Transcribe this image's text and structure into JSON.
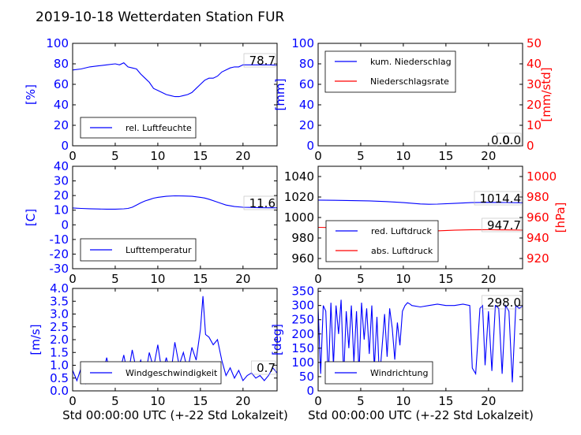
{
  "title": "2019-10-18 Wetterdaten Station FUR",
  "xlabel": "Std 00:00:00 UTC (+-22 Std Lokalzeit)",
  "colors": {
    "blue": "#0000ff",
    "red": "#ff0000"
  },
  "chart_data": [
    {
      "id": "humidity",
      "type": "line",
      "ylabel": "[%]",
      "ylim": [
        0,
        100
      ],
      "yticks": [
        0,
        20,
        40,
        60,
        80,
        100
      ],
      "xlim": [
        0,
        24
      ],
      "xticks": [
        0,
        5,
        10,
        15,
        20
      ],
      "last_value": "78.7",
      "legend": {
        "placement": "lower-left",
        "entries": [
          "rel. Luftfeuchte"
        ]
      },
      "series": [
        {
          "name": "rel. Luftfeuchte",
          "color": "#0000ff",
          "x": [
            0,
            1,
            2,
            3,
            4,
            5,
            5.5,
            6,
            6.5,
            7,
            7.5,
            8,
            8.5,
            9,
            9.5,
            10,
            10.5,
            11,
            11.5,
            12,
            12.5,
            13,
            13.5,
            14,
            14.5,
            15,
            15.5,
            16,
            16.5,
            17,
            17.5,
            18,
            18.5,
            19,
            19.5,
            20,
            21,
            22,
            23,
            24
          ],
          "y": [
            74,
            75,
            77,
            78,
            79,
            80,
            79,
            81,
            77,
            76,
            75,
            70,
            66,
            62,
            56,
            54,
            52,
            50,
            49,
            48,
            48,
            49,
            50,
            52,
            56,
            60,
            64,
            66,
            66,
            68,
            72,
            74,
            76,
            77,
            77,
            79,
            79,
            79,
            79,
            78.7
          ]
        }
      ]
    },
    {
      "id": "precip",
      "type": "line",
      "ylabel": "[mm]",
      "ylabel_right": "[mm/std]",
      "ylim": [
        0,
        100
      ],
      "yticks": [
        0,
        20,
        40,
        60,
        80,
        100
      ],
      "ylim_right": [
        0,
        50
      ],
      "yticks_right": [
        0,
        10,
        20,
        30,
        40,
        50
      ],
      "xlim": [
        0,
        24
      ],
      "xticks": [
        0,
        5,
        10,
        15,
        20
      ],
      "last_value": "0.0",
      "last_value_2": "0.0",
      "legend": {
        "placement": "upper-left",
        "entries": [
          "kum. Niederschlag",
          "Niederschlagsrate"
        ]
      },
      "series": [
        {
          "name": "kum. Niederschlag",
          "color": "#0000ff",
          "x": [
            0,
            24
          ],
          "y": [
            0,
            0
          ]
        },
        {
          "name": "Niederschlagsrate",
          "color": "#ff0000",
          "x": [
            0,
            24
          ],
          "y": [
            0,
            0
          ]
        }
      ]
    },
    {
      "id": "temperature",
      "type": "line",
      "ylabel": "[C]",
      "ylim": [
        -30,
        40
      ],
      "yticks": [
        -30,
        -20,
        -10,
        0,
        10,
        20,
        30,
        40
      ],
      "xlim": [
        0,
        24
      ],
      "xticks": [
        0,
        5,
        10,
        15,
        20
      ],
      "last_value": "11.6",
      "legend": {
        "placement": "lower-left",
        "entries": [
          "Lufttemperatur"
        ]
      },
      "series": [
        {
          "name": "Lufttemperatur",
          "color": "#0000ff",
          "x": [
            0,
            1,
            2,
            3,
            4,
            5,
            6,
            6.5,
            7,
            7.5,
            8,
            8.5,
            9,
            9.5,
            10,
            11,
            12,
            13,
            14,
            15,
            15.5,
            16,
            17,
            17.5,
            18,
            19,
            20,
            21,
            22,
            23,
            24
          ],
          "y": [
            11.5,
            11.2,
            11.0,
            10.8,
            10.7,
            10.7,
            10.9,
            11.2,
            12.0,
            13.5,
            15.0,
            16.3,
            17.2,
            18.2,
            18.8,
            19.5,
            19.8,
            19.7,
            19.5,
            18.8,
            18.3,
            17.5,
            15.5,
            14.5,
            13.5,
            12.5,
            12.0,
            11.9,
            11.7,
            11.6,
            11.6
          ]
        }
      ]
    },
    {
      "id": "pressure",
      "type": "line",
      "ylabel_right": "[hPa]",
      "ylim": [
        950,
        1050
      ],
      "yticks": [
        960,
        980,
        1000,
        1020,
        1040
      ],
      "ylim_right": [
        910,
        1010
      ],
      "yticks_right": [
        920,
        940,
        960,
        980,
        1000
      ],
      "xlim": [
        0,
        24
      ],
      "xticks": [
        0,
        5,
        10,
        15,
        20
      ],
      "last_value": "1014.4",
      "last_value_2": "947.7",
      "legend": {
        "placement": "lower-left",
        "entries": [
          "red. Luftdruck",
          "abs. Luftdruck"
        ]
      },
      "series": [
        {
          "name": "red. Luftdruck",
          "color": "#0000ff",
          "axis": "left",
          "x": [
            0,
            2,
            4,
            6,
            8,
            10,
            12,
            13,
            14,
            16,
            18,
            20,
            22,
            24
          ],
          "y": [
            1017,
            1016.8,
            1016.5,
            1016.2,
            1015.5,
            1014.5,
            1013.2,
            1012.9,
            1013.1,
            1013.8,
            1014.5,
            1014.8,
            1014.6,
            1014.4
          ]
        },
        {
          "name": "abs. Luftdruck",
          "color": "#ff0000",
          "axis": "right",
          "x": [
            0,
            2,
            4,
            6,
            8,
            10,
            12,
            13,
            14,
            16,
            18,
            20,
            22,
            24
          ],
          "y": [
            950.4,
            950.1,
            949.8,
            949.5,
            948.8,
            948.0,
            947.0,
            946.8,
            947.0,
            947.6,
            948.0,
            948.1,
            947.9,
            947.7
          ]
        }
      ]
    },
    {
      "id": "wind-speed",
      "type": "line",
      "ylabel": "[m/s]",
      "ylim": [
        0,
        4
      ],
      "yticks": [
        0.0,
        0.5,
        1.0,
        1.5,
        2.0,
        2.5,
        3.0,
        3.5,
        4.0
      ],
      "xlim": [
        0,
        24
      ],
      "xticks": [
        0,
        5,
        10,
        15,
        20
      ],
      "last_value": "0.7",
      "legend": {
        "placement": "lower-left",
        "entries": [
          "Windgeschwindigkeit"
        ]
      },
      "series": [
        {
          "name": "Windgeschwindigkeit",
          "color": "#0000ff",
          "x": [
            0,
            0.5,
            1,
            1.5,
            2,
            2.5,
            3,
            3.5,
            4,
            4.5,
            5,
            5.5,
            6,
            6.5,
            7,
            7.5,
            8,
            8.5,
            9,
            9.5,
            10,
            10.5,
            11,
            11.5,
            12,
            12.5,
            13,
            13.5,
            14,
            14.5,
            15,
            15.3,
            15.6,
            16,
            16.5,
            17,
            17.5,
            18,
            18.5,
            19,
            19.5,
            20,
            20.5,
            21,
            21.5,
            22,
            22.5,
            23,
            23.5,
            24
          ],
          "y": [
            0.8,
            0.4,
            0.9,
            0.3,
            0.7,
            0.5,
            1.1,
            0.6,
            1.3,
            0.5,
            0.9,
            0.7,
            1.4,
            0.6,
            1.6,
            0.8,
            1.2,
            0.5,
            1.5,
            0.9,
            1.8,
            0.7,
            1.3,
            0.6,
            1.9,
            1.0,
            1.5,
            0.8,
            1.7,
            1.2,
            2.4,
            3.7,
            2.2,
            2.1,
            1.8,
            2.0,
            1.2,
            0.6,
            0.9,
            0.5,
            0.8,
            0.4,
            0.6,
            0.7,
            0.5,
            0.6,
            0.4,
            0.6,
            0.9,
            0.7
          ]
        }
      ]
    },
    {
      "id": "wind-direction",
      "type": "line",
      "ylabel": "[deg]",
      "ylim": [
        0,
        360
      ],
      "yticks": [
        0,
        50,
        100,
        150,
        200,
        250,
        300,
        350
      ],
      "xlim": [
        0,
        24
      ],
      "xticks": [
        0,
        5,
        10,
        15,
        20
      ],
      "last_value": "298.0",
      "legend": {
        "placement": "lower-left",
        "entries": [
          "Windrichtung"
        ]
      },
      "series": [
        {
          "name": "Windrichtung",
          "color": "#0000ff",
          "x": [
            0,
            0.3,
            0.6,
            0.9,
            1.2,
            1.5,
            1.8,
            2.1,
            2.4,
            2.7,
            3,
            3.3,
            3.6,
            3.9,
            4.2,
            4.5,
            4.8,
            5.1,
            5.4,
            5.7,
            6,
            6.3,
            6.6,
            6.9,
            7.2,
            7.5,
            7.8,
            8.1,
            8.4,
            8.7,
            9,
            9.3,
            9.6,
            9.9,
            10.2,
            10.5,
            10.8,
            11,
            12,
            13,
            14,
            15,
            16,
            17,
            17.8,
            18.1,
            18.5,
            19,
            19.3,
            19.6,
            20,
            20.4,
            20.8,
            21.2,
            21.6,
            22,
            22.4,
            22.8,
            23.2,
            23.6,
            24
          ],
          "y": [
            290,
            60,
            300,
            280,
            40,
            310,
            90,
            300,
            200,
            320,
            50,
            280,
            150,
            300,
            100,
            280,
            60,
            310,
            180,
            290,
            130,
            300,
            80,
            260,
            40,
            150,
            270,
            120,
            290,
            220,
            110,
            240,
            160,
            280,
            300,
            310,
            305,
            300,
            295,
            300,
            305,
            300,
            300,
            305,
            300,
            80,
            60,
            290,
            300,
            90,
            280,
            70,
            300,
            290,
            60,
            300,
            280,
            30,
            300,
            290,
            298
          ]
        }
      ]
    }
  ]
}
